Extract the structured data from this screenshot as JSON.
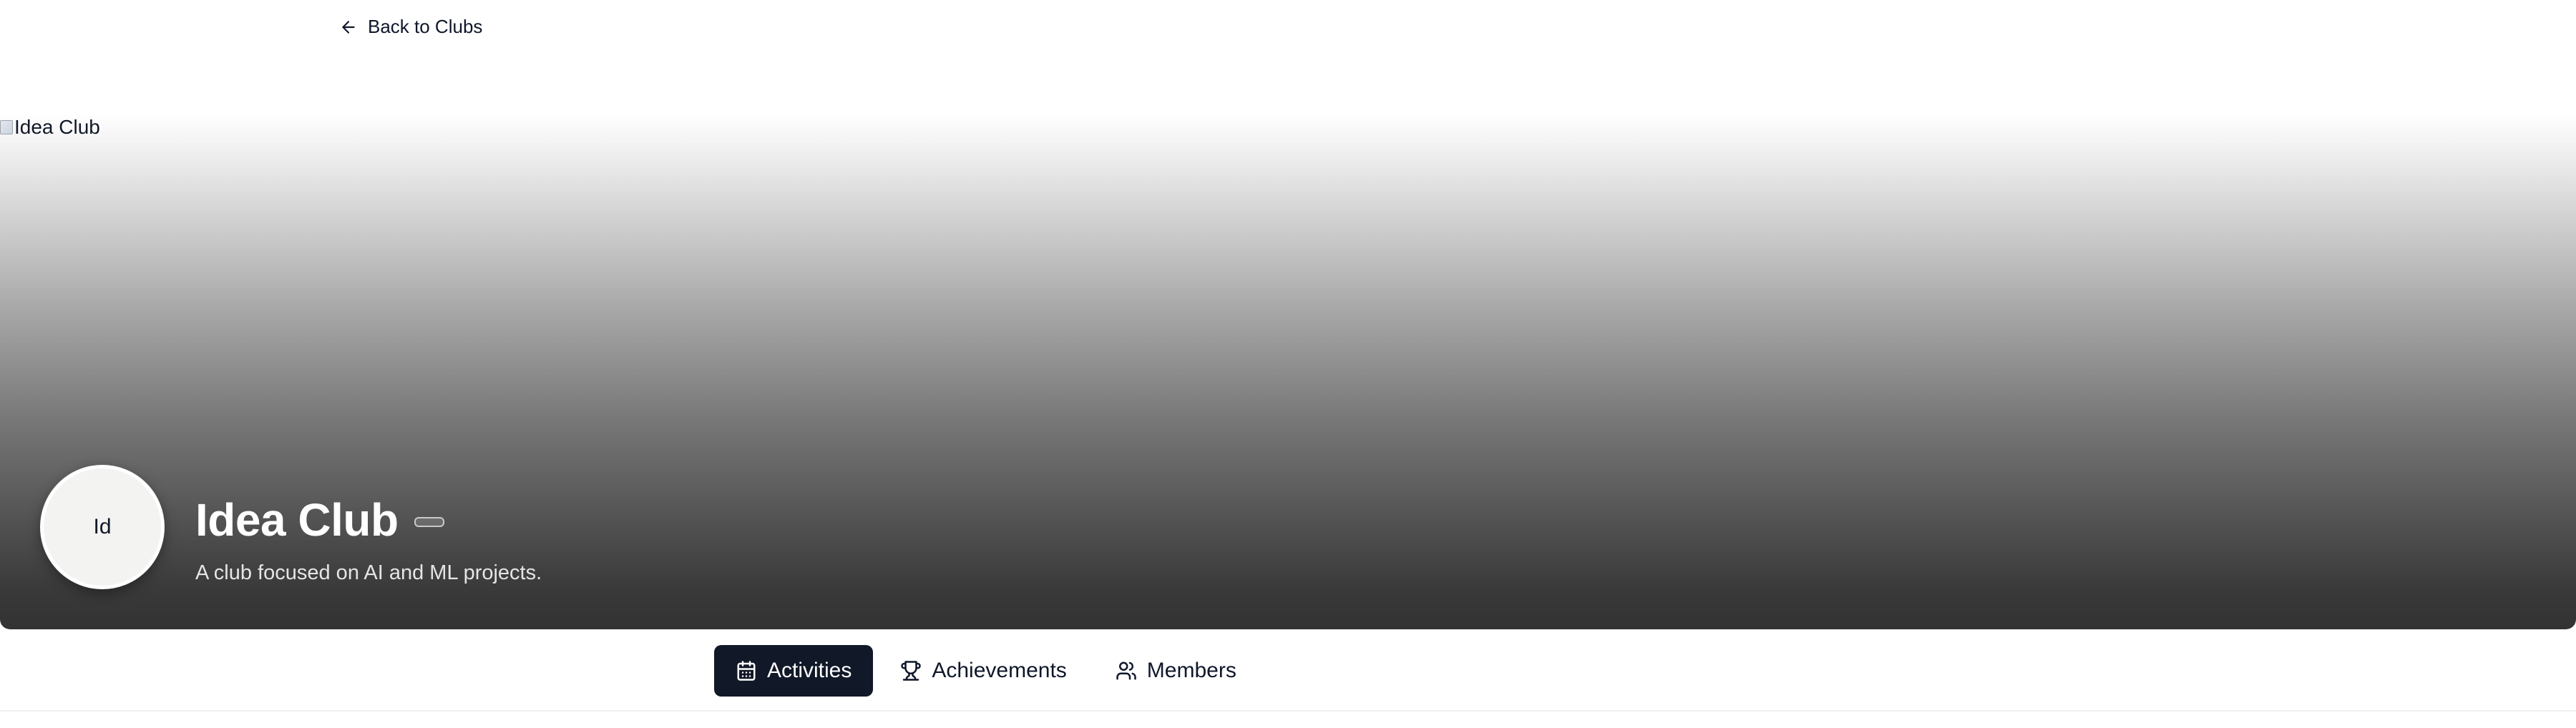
{
  "nav": {
    "back_label": "Back to Clubs"
  },
  "hero": {
    "image_alt": "Idea Club",
    "avatar_initials": "Id",
    "club_name": "Idea Club",
    "description": "A club focused on AI and ML projects."
  },
  "tabs": [
    {
      "label": "Activities",
      "icon": "calendar-icon",
      "active": true
    },
    {
      "label": "Achievements",
      "icon": "trophy-icon",
      "active": false
    },
    {
      "label": "Members",
      "icon": "users-icon",
      "active": false
    }
  ],
  "colors": {
    "active_tab_bg": "#111827",
    "text_primary": "#0f172a"
  }
}
